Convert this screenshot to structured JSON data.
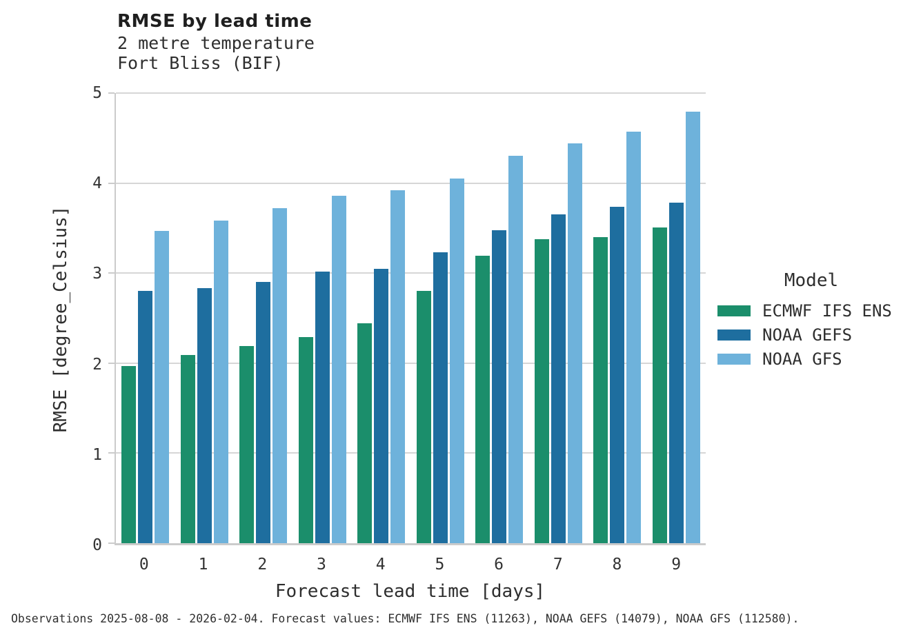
{
  "footer": "Observations 2025-08-08 - 2026-02-04. Forecast values: ECMWF IFS ENS (11263), NOAA GEFS (14079), NOAA GFS (112580).",
  "colors": {
    "ecmwf_ifs_ens": "#1b8e6b",
    "noaa_gefs": "#1e6e9f",
    "noaa_gfs": "#6eb2db",
    "gridline": "#d6d6d6",
    "axis": "#cbcbcb",
    "text": "#2e2e2e"
  },
  "chart_data": {
    "type": "bar",
    "title": "RMSE by lead time",
    "subtitle_variable": "2 metre temperature",
    "subtitle_station": "Fort Bliss (BIF)",
    "xlabel": "Forecast lead time [days]",
    "ylabel": "RMSE [degree_Celsius]",
    "categories": [
      "0",
      "1",
      "2",
      "3",
      "4",
      "5",
      "6",
      "7",
      "8",
      "9"
    ],
    "ylim": [
      0,
      5
    ],
    "yticks": [
      0,
      1,
      2,
      3,
      4,
      5
    ],
    "grid": true,
    "legend_title": "Model",
    "legend_position": "right",
    "series": [
      {
        "name": "ECMWF IFS ENS",
        "color": "#1b8e6b",
        "values": [
          1.97,
          2.09,
          2.19,
          2.29,
          2.44,
          2.8,
          3.19,
          3.38,
          3.4,
          3.51
        ]
      },
      {
        "name": "NOAA GEFS",
        "color": "#1e6e9f",
        "values": [
          2.8,
          2.83,
          2.9,
          3.02,
          3.05,
          3.23,
          3.48,
          3.65,
          3.74,
          3.78
        ]
      },
      {
        "name": "NOAA GFS",
        "color": "#6eb2db",
        "values": [
          3.47,
          3.58,
          3.72,
          3.86,
          3.92,
          4.05,
          4.3,
          4.44,
          4.57,
          4.79
        ]
      }
    ]
  }
}
